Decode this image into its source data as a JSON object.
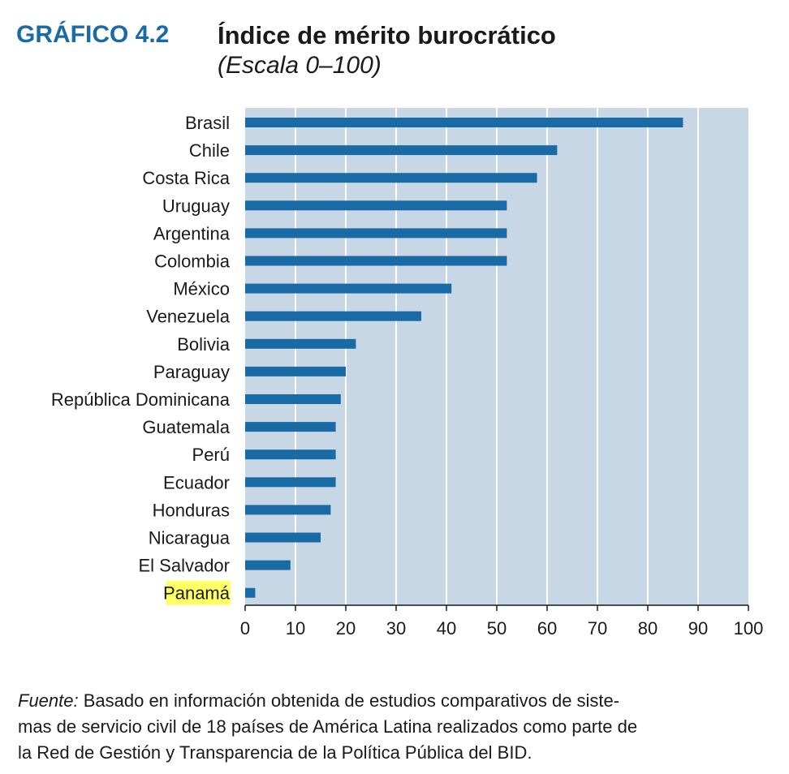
{
  "header": {
    "label": "GRÁFICO 4.2",
    "title": "Índice de mérito burocrático",
    "subtitle": "(Escala 0–100)"
  },
  "footer": {
    "source_label": "Fuente:",
    "source_text": " Basado en información obtenida de estudios comparativos de siste-",
    "source_line2": "mas de servicio civil de 18 países de América Latina realizados como parte de",
    "source_line3": "la Red de Gestión y Transparencia de la Política Pública del BID."
  },
  "colors": {
    "bar": "#1a6aa6",
    "plot_background": "#c8d7e5",
    "gridline": "#ffffff",
    "highlight": "#ffff66"
  },
  "chart_data": {
    "type": "bar",
    "orientation": "horizontal",
    "categories": [
      "Brasil",
      "Chile",
      "Costa Rica",
      "Uruguay",
      "Argentina",
      "Colombia",
      "México",
      "Venezuela",
      "Bolivia",
      "Paraguay",
      "República Dominicana",
      "Guatemala",
      "Perú",
      "Ecuador",
      "Honduras",
      "Nicaragua",
      "El Salvador",
      "Panamá"
    ],
    "values": [
      87,
      62,
      58,
      52,
      52,
      52,
      41,
      35,
      22,
      20,
      19,
      18,
      18,
      18,
      17,
      15,
      9,
      2
    ],
    "highlighted_category": "Panamá",
    "xlim": [
      0,
      100
    ],
    "xticks": [
      0,
      10,
      20,
      30,
      40,
      50,
      60,
      70,
      80,
      90,
      100
    ],
    "grid": true
  }
}
